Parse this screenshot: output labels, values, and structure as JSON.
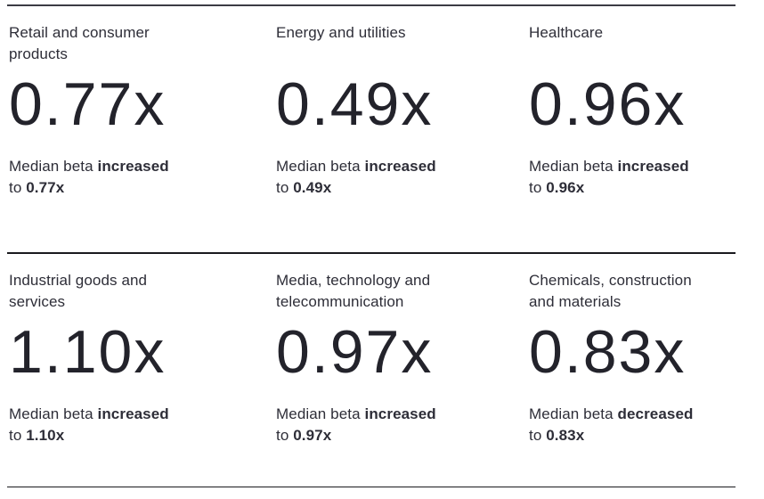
{
  "colors": {
    "text": "#2e2e38",
    "rule_top": "#3c3c44",
    "rule": "#1a1a1e",
    "background": "#ffffff"
  },
  "cards": [
    {
      "sector": "Retail and consumer products",
      "value": "0.77x",
      "desc": {
        "lead": "Median beta ",
        "change": "increased",
        "to": "to ",
        "value": "0.77x"
      }
    },
    {
      "sector": "Energy and utilities",
      "value": "0.49x",
      "desc": {
        "lead": "Median beta ",
        "change": "increased",
        "to": "to ",
        "value": "0.49x"
      }
    },
    {
      "sector": "Healthcare",
      "value": "0.96x",
      "desc": {
        "lead": "Median beta ",
        "change": "increased",
        "to": "to ",
        "value": "0.96x"
      }
    },
    {
      "sector": "Industrial goods and services",
      "value": "1.10x",
      "desc": {
        "lead": "Median beta ",
        "change": "increased",
        "to": "to ",
        "value": "1.10x"
      }
    },
    {
      "sector": "Media, technology and telecommunication",
      "value": "0.97x",
      "desc": {
        "lead": "Median beta ",
        "change": "increased",
        "to": "to ",
        "value": "0.97x"
      }
    },
    {
      "sector": "Chemicals, construction and materials",
      "value": "0.83x",
      "desc": {
        "lead": "Median beta ",
        "change": "decreased",
        "to": "to ",
        "value": "0.83x"
      }
    }
  ]
}
